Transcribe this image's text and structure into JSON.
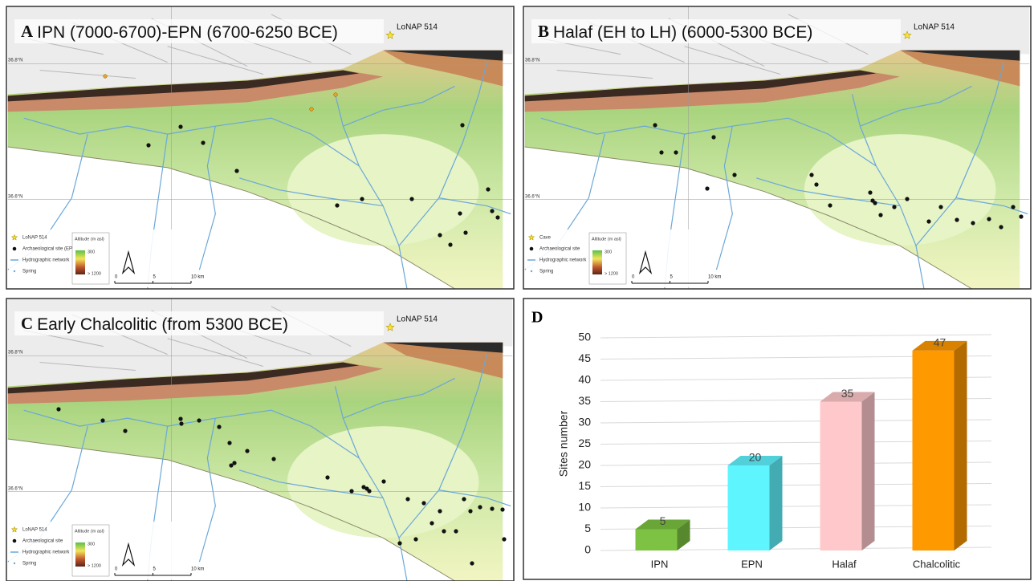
{
  "panels": [
    {
      "label": "A",
      "title": "IPN (7000-6700)-EPN (6700-6250 BCE)",
      "site": "LoNAP 514",
      "legend": [
        "LoNAP 514",
        "Archaeological site (EPN )",
        "Hydrographic network",
        "Spring"
      ]
    },
    {
      "label": "B",
      "title": "Halaf  (EH to LH) (6000-5300 BCE)",
      "site": "LoNAP 514",
      "legend": [
        "Cave",
        "Archaeological site",
        "Hydrographic network",
        "Spring"
      ]
    },
    {
      "label": "C",
      "title": "Early Chalcolitic (from 5300 BCE)",
      "site": "LoNAP 514",
      "legend": [
        "LoNAP 514",
        "Archaeological site",
        "Hydrographic network",
        "Spring"
      ]
    }
  ],
  "map_text": {
    "altitude": "Altitude (m asl)",
    "alt_low": "300",
    "alt_high": "> 1200",
    "scale": [
      "0",
      "5",
      "10 km"
    ],
    "lat": [
      "36.8°N",
      "36.6°N"
    ]
  },
  "chart_data": {
    "type": "bar",
    "label": "D",
    "ylabel": "Sites number",
    "categories": [
      "IPN",
      "EPN",
      "Halaf",
      "Chalcolitic"
    ],
    "values": [
      5,
      20,
      35,
      47
    ],
    "colors": [
      "#7dc242",
      "#5ff5ff",
      "#ffc9cc",
      "#ff9900"
    ],
    "ylim": [
      0,
      50
    ],
    "yticks": [
      0,
      5,
      10,
      15,
      20,
      25,
      30,
      35,
      40,
      45,
      50
    ],
    "grid": true
  }
}
